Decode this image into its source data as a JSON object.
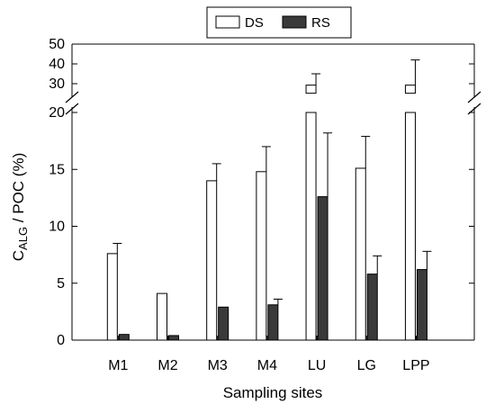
{
  "chart_data": {
    "type": "bar",
    "xlabel": "Sampling sites",
    "ylabel_main": "C",
    "ylabel_sub": "ALG",
    "ylabel_rest": " / POC (%)",
    "categories": [
      "M1",
      "M2",
      "M3",
      "M4",
      "LU",
      "LG",
      "LPP"
    ],
    "series": [
      {
        "name": "DS",
        "color": "#ffffff",
        "values": [
          7.6,
          4.1,
          14.0,
          14.8,
          27,
          15.1,
          27
        ],
        "errors": [
          0.9,
          0,
          1.5,
          2.2,
          8,
          2.8,
          15
        ]
      },
      {
        "name": "RS",
        "color": "#3a3a3a",
        "values": [
          0.5,
          0.4,
          2.9,
          3.1,
          12.6,
          5.8,
          6.2
        ],
        "errors": [
          0,
          0,
          0,
          0.5,
          5.6,
          1.6,
          1.6
        ]
      }
    ],
    "axis_lower": {
      "min": 0,
      "max": 20,
      "ticks": [
        0,
        5,
        10,
        15,
        20
      ]
    },
    "axis_upper": {
      "min": 25,
      "max": 50,
      "ticks": [
        30,
        40,
        50
      ]
    },
    "axis_break": true,
    "grid": false,
    "legend_placement": "top-center"
  }
}
